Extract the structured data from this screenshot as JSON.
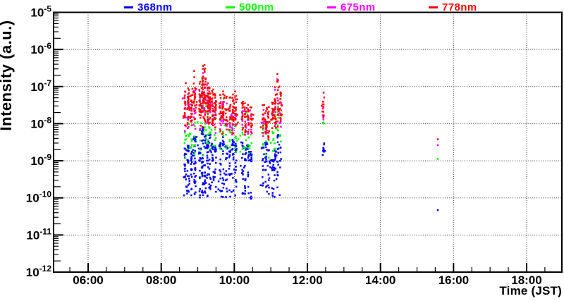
{
  "chart_data": {
    "type": "scatter",
    "title": "",
    "xlabel": "Time (JST)",
    "ylabel": "Intensity (a.u.)",
    "x_axis": {
      "unit": "hours JST",
      "min_hours": 5.06,
      "max_hours": 18.96,
      "major_ticks": [
        {
          "t": 6,
          "label": "06:00"
        },
        {
          "t": 8,
          "label": "08:00"
        },
        {
          "t": 10,
          "label": "10:00"
        },
        {
          "t": 12,
          "label": "12:00"
        },
        {
          "t": 14,
          "label": "14:00"
        },
        {
          "t": 16,
          "label": "16:00"
        },
        {
          "t": 18,
          "label": "18:00"
        }
      ],
      "minor_tick_interval_hours": 0.5,
      "grid": "dotted"
    },
    "y_axis": {
      "scale": "log",
      "min_exp": -12,
      "max_exp": -5,
      "tick_exponents": [
        -5,
        -6,
        -7,
        -8,
        -9,
        -10,
        -11,
        -12
      ],
      "grid": "dotted"
    },
    "series": [
      {
        "name": "368nm",
        "color": "#0000ff"
      },
      {
        "name": "500nm",
        "color": "#00ff00"
      },
      {
        "name": "675nm",
        "color": "#ff00ff"
      },
      {
        "name": "778nm",
        "color": "#ff0000"
      }
    ],
    "clusters": [
      {
        "id": "burst-0840-0858",
        "spikes": [
          [
            8.66,
            0.8
          ],
          [
            8.74,
            0.85
          ],
          [
            8.83,
            0.75
          ],
          [
            8.92,
            1.0
          ]
        ],
        "tj": 1,
        "series": {
          "368nm": {
            "n": 110,
            "lo": -9.95,
            "hi": -8.35,
            "dist": "top"
          },
          "500nm": {
            "n": 28,
            "lo": -9.1,
            "hi": -7.4,
            "dist": "tri"
          },
          "675nm": {
            "n": 38,
            "lo": -8.25,
            "hi": -6.8,
            "dist": "tri"
          },
          "778nm": {
            "n": 90,
            "lo": -8.2,
            "hi": -6.55,
            "dist": "tri"
          }
        }
      },
      {
        "id": "burst-0903-0917",
        "spikes": [
          [
            9.06,
            0.7
          ],
          [
            9.13,
            1.0
          ],
          [
            9.2,
            0.9
          ],
          [
            9.27,
            0.75
          ]
        ],
        "tj": 1,
        "series": {
          "368nm": {
            "n": 110,
            "lo": -10.0,
            "hi": -8.1,
            "dist": "top"
          },
          "500nm": {
            "n": 32,
            "lo": -9.0,
            "hi": -6.6,
            "dist": "tri"
          },
          "675nm": {
            "n": 40,
            "lo": -8.3,
            "hi": -6.35,
            "dist": "tri"
          },
          "778nm": {
            "n": 110,
            "lo": -8.2,
            "hi": -6.12,
            "dist": "tri"
          }
        }
      },
      {
        "id": "burst-0918-0930",
        "spikes": [
          [
            9.33,
            1.0
          ],
          [
            9.41,
            0.85
          ],
          [
            9.48,
            0.8
          ]
        ],
        "tj": 1,
        "series": {
          "368nm": {
            "n": 60,
            "lo": -9.9,
            "hi": -8.3,
            "dist": "top"
          },
          "500nm": {
            "n": 20,
            "lo": -8.9,
            "hi": -7.2,
            "dist": "tri"
          },
          "675nm": {
            "n": 26,
            "lo": -8.3,
            "hi": -7.0,
            "dist": "tri"
          },
          "778nm": {
            "n": 65,
            "lo": -8.2,
            "hi": -6.75,
            "dist": "tri"
          }
        }
      },
      {
        "id": "burst-0935-1004",
        "spikes": [
          [
            9.62,
            0.9
          ],
          [
            9.7,
            1.0
          ],
          [
            9.79,
            0.85
          ],
          [
            9.88,
            0.8
          ],
          [
            9.96,
            0.95
          ],
          [
            10.04,
            0.85
          ]
        ],
        "tj": 1,
        "series": {
          "368nm": {
            "n": 120,
            "lo": -10.0,
            "hi": -8.35,
            "dist": "top"
          },
          "500nm": {
            "n": 34,
            "lo": -9.0,
            "hi": -7.3,
            "dist": "tri"
          },
          "675nm": {
            "n": 42,
            "lo": -8.4,
            "hi": -7.1,
            "dist": "tri"
          },
          "778nm": {
            "n": 110,
            "lo": -8.3,
            "hi": -6.9,
            "dist": "tri"
          }
        }
      },
      {
        "id": "burst-1012-1030",
        "spikes": [
          [
            10.22,
            1.0
          ],
          [
            10.3,
            0.9
          ],
          [
            10.38,
            0.95
          ],
          [
            10.46,
            0.8
          ]
        ],
        "tj": 1,
        "series": {
          "368nm": {
            "n": 70,
            "lo": -10.05,
            "hi": -8.5,
            "dist": "top"
          },
          "500nm": {
            "n": 24,
            "lo": -9.1,
            "hi": -7.55,
            "dist": "tri"
          },
          "675nm": {
            "n": 26,
            "lo": -8.5,
            "hi": -7.35,
            "dist": "tri"
          },
          "778nm": {
            "n": 60,
            "lo": -8.4,
            "hi": -7.2,
            "dist": "tri"
          }
        }
      },
      {
        "id": "burst-1046-1058",
        "spikes": [
          [
            10.79,
            0.9
          ],
          [
            10.87,
            1.0
          ],
          [
            10.94,
            0.85
          ]
        ],
        "tj": 1,
        "series": {
          "368nm": {
            "n": 48,
            "lo": -9.9,
            "hi": -8.5,
            "dist": "top"
          },
          "500nm": {
            "n": 16,
            "lo": -9.0,
            "hi": -7.75,
            "dist": "tri"
          },
          "675nm": {
            "n": 18,
            "lo": -8.5,
            "hi": -7.45,
            "dist": "tri"
          },
          "778nm": {
            "n": 45,
            "lo": -8.45,
            "hi": -7.32,
            "dist": "tri"
          }
        }
      },
      {
        "id": "burst-1102-1118",
        "spikes": [
          [
            11.05,
            0.6
          ],
          [
            11.12,
            0.75
          ],
          [
            11.19,
            1.0
          ],
          [
            11.26,
            0.8
          ]
        ],
        "tj": 1,
        "series": {
          "368nm": {
            "n": 62,
            "lo": -10.0,
            "hi": -8.3,
            "dist": "top"
          },
          "500nm": {
            "n": 24,
            "lo": -9.0,
            "hi": -6.85,
            "dist": "tri"
          },
          "675nm": {
            "n": 30,
            "lo": -8.4,
            "hi": -6.55,
            "dist": "tri"
          },
          "778nm": {
            "n": 75,
            "lo": -8.3,
            "hi": -6.38,
            "dist": "tri"
          }
        }
      },
      {
        "id": "burst-1227",
        "spikes": [
          [
            12.44,
            1.0
          ]
        ],
        "tj": 1,
        "series": {
          "368nm": {
            "n": 11,
            "lo": -9.0,
            "hi": -8.38,
            "dist": "tri"
          },
          "500nm": {
            "n": 3,
            "lo": -8.05,
            "hi": -7.88,
            "dist": "tri"
          },
          "675nm": {
            "n": 5,
            "lo": -8.0,
            "hi": -7.25,
            "dist": "tri"
          },
          "778nm": {
            "n": 12,
            "lo": -7.95,
            "hi": -7.12,
            "dist": "tri"
          }
        }
      },
      {
        "id": "points-1534",
        "spikes": [
          [
            15.57,
            1.0
          ]
        ],
        "tj": 0.05,
        "series": {
          "368nm": {
            "n": 1,
            "lo": -10.33,
            "hi": -10.33,
            "dist": "tri"
          },
          "500nm": {
            "n": 1,
            "lo": -8.95,
            "hi": -8.95,
            "dist": "tri"
          },
          "675nm": {
            "n": 1,
            "lo": -8.58,
            "hi": -8.58,
            "dist": "tri"
          },
          "778nm": {
            "n": 1,
            "lo": -8.42,
            "hi": -8.42,
            "dist": "tri"
          }
        }
      }
    ]
  },
  "colors": {
    "frame": "#000000",
    "grid": "#333333",
    "background": "#ffffff",
    "text": "#000000"
  }
}
